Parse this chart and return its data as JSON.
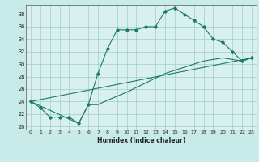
{
  "title": "",
  "xlabel": "Humidex (Indice chaleur)",
  "ylabel": "",
  "bg_color": "#c8eae8",
  "plot_bg_color": "#d8f0ee",
  "grid_color": "#a0ccc8",
  "line_color": "#1a7a6a",
  "spine_color": "#555555",
  "xlim": [
    -0.5,
    23.5
  ],
  "ylim": [
    19.5,
    39.5
  ],
  "xticks": [
    0,
    1,
    2,
    3,
    4,
    5,
    6,
    7,
    8,
    9,
    10,
    11,
    12,
    13,
    14,
    15,
    16,
    17,
    18,
    19,
    20,
    21,
    22,
    23
  ],
  "yticks": [
    20,
    22,
    24,
    26,
    28,
    30,
    32,
    34,
    36,
    38
  ],
  "series": [
    [
      0,
      24
    ],
    [
      1,
      23
    ],
    [
      2,
      21.5
    ],
    [
      3,
      21.5
    ],
    [
      4,
      21.5
    ],
    [
      5,
      20.5
    ],
    [
      6,
      23.5
    ],
    [
      7,
      28.5
    ],
    [
      8,
      32.5
    ],
    [
      9,
      35.5
    ],
    [
      10,
      35.5
    ],
    [
      11,
      35.5
    ],
    [
      12,
      36
    ],
    [
      13,
      36
    ],
    [
      14,
      38.5
    ],
    [
      15,
      39
    ],
    [
      16,
      38
    ],
    [
      17,
      37
    ],
    [
      18,
      36
    ],
    [
      19,
      34
    ],
    [
      20,
      33.5
    ],
    [
      21,
      32
    ],
    [
      22,
      30.5
    ],
    [
      23,
      31
    ]
  ],
  "series2": [
    [
      0,
      24
    ],
    [
      5,
      20.5
    ],
    [
      6,
      23.5
    ],
    [
      7,
      23.5
    ],
    [
      8,
      24.2
    ],
    [
      10,
      25.5
    ],
    [
      12,
      27
    ],
    [
      14,
      28.5
    ],
    [
      16,
      29.5
    ],
    [
      18,
      30.5
    ],
    [
      20,
      31
    ],
    [
      22,
      30.5
    ],
    [
      23,
      31
    ]
  ],
  "series3": [
    [
      0,
      24
    ],
    [
      23,
      31
    ]
  ]
}
